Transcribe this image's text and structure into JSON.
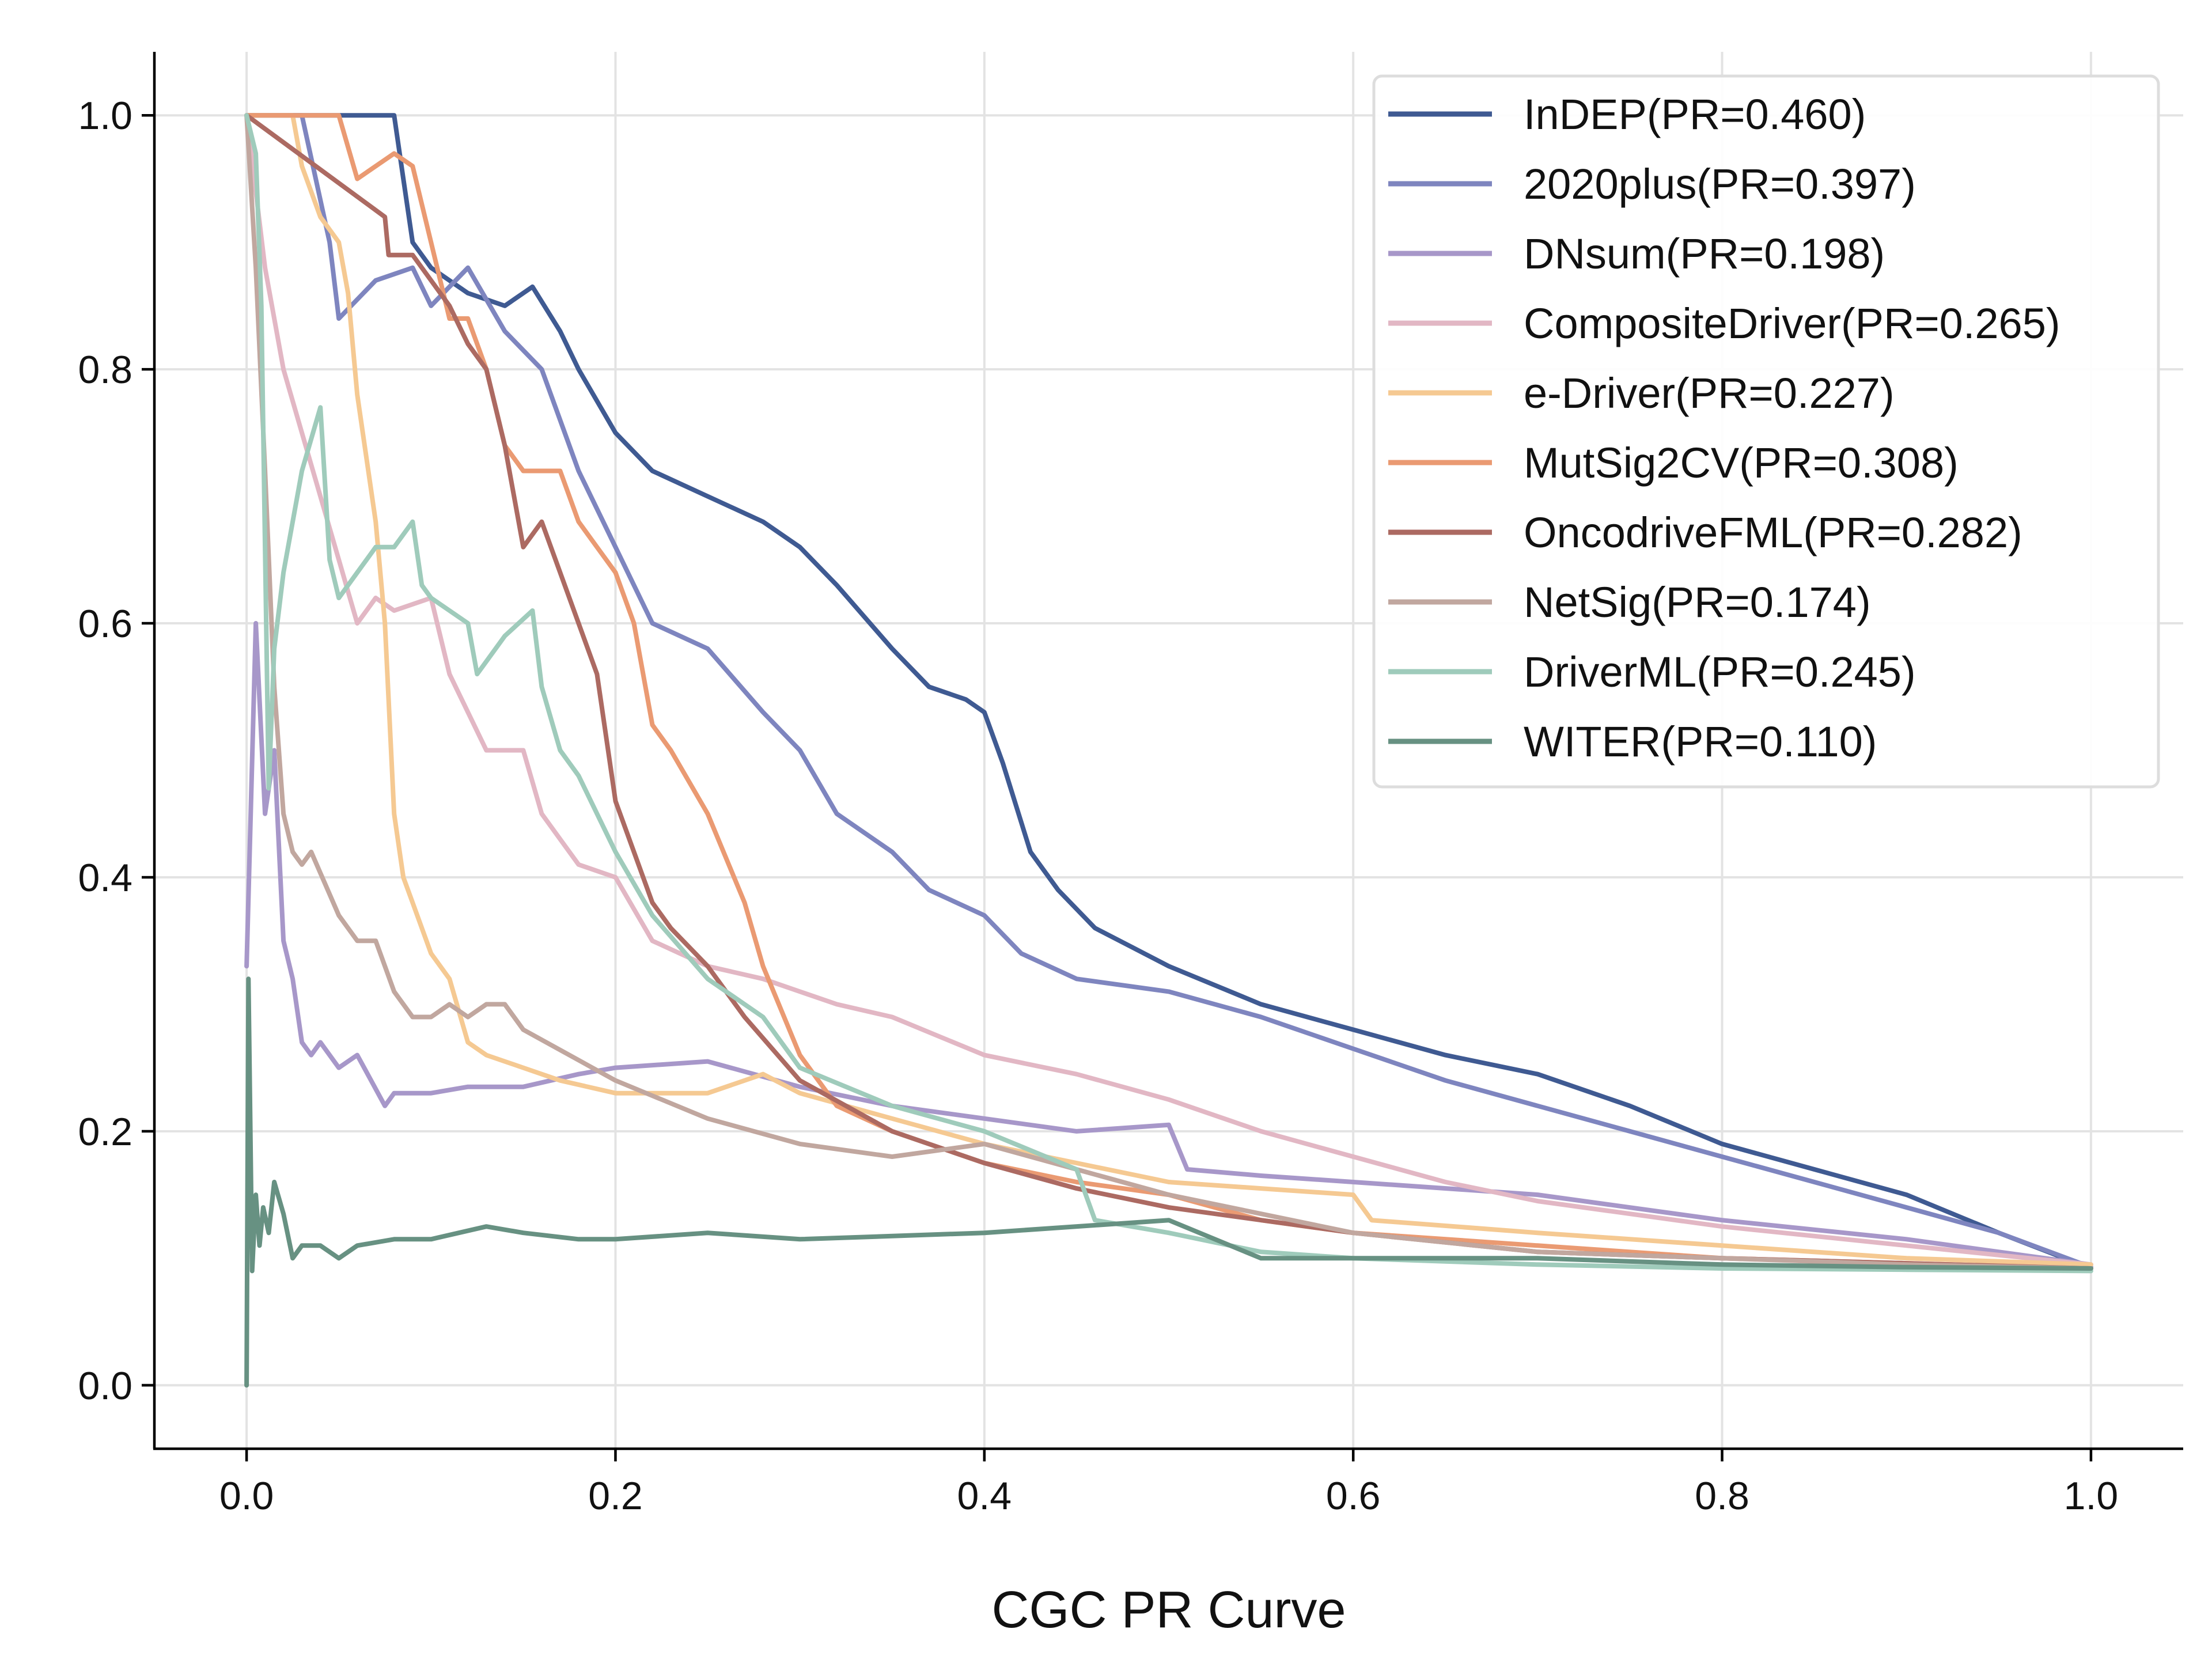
{
  "chart_data": {
    "type": "line",
    "title": "",
    "xlabel": "CGC PR Curve",
    "ylabel": "",
    "xlim": [
      -0.05,
      1.05
    ],
    "ylim": [
      -0.05,
      1.05
    ],
    "xticks": [
      0.0,
      0.2,
      0.4,
      0.6,
      0.8,
      1.0
    ],
    "xtick_labels": [
      "0.0",
      "0.2",
      "0.4",
      "0.6",
      "0.8",
      "1.0"
    ],
    "yticks": [
      0.0,
      0.2,
      0.4,
      0.6,
      0.8,
      1.0
    ],
    "ytick_labels": [
      "0.0",
      "0.2",
      "0.4",
      "0.6",
      "0.8",
      "1.0"
    ],
    "grid": true,
    "legend_position": "top-right",
    "series": [
      {
        "name": "InDEP(PR=0.460)",
        "color": "#3f5a92",
        "opacity": 1.0,
        "x": [
          0.0,
          0.04,
          0.08,
          0.085,
          0.09,
          0.1,
          0.12,
          0.14,
          0.155,
          0.17,
          0.18,
          0.2,
          0.22,
          0.25,
          0.28,
          0.3,
          0.32,
          0.35,
          0.37,
          0.39,
          0.4,
          0.41,
          0.425,
          0.44,
          0.46,
          0.48,
          0.5,
          0.55,
          0.6,
          0.65,
          0.7,
          0.75,
          0.8,
          0.85,
          0.9,
          0.95,
          1.0
        ],
        "y": [
          1.0,
          1.0,
          1.0,
          0.95,
          0.9,
          0.88,
          0.86,
          0.85,
          0.865,
          0.83,
          0.8,
          0.75,
          0.72,
          0.7,
          0.68,
          0.66,
          0.63,
          0.58,
          0.55,
          0.54,
          0.53,
          0.49,
          0.42,
          0.39,
          0.36,
          0.345,
          0.33,
          0.3,
          0.28,
          0.26,
          0.245,
          0.22,
          0.19,
          0.17,
          0.15,
          0.12,
          0.092
        ]
      },
      {
        "name": "2020plus(PR=0.397)",
        "color": "#7e85bf",
        "opacity": 1.0,
        "x": [
          0.0,
          0.03,
          0.045,
          0.05,
          0.07,
          0.09,
          0.1,
          0.12,
          0.14,
          0.16,
          0.18,
          0.2,
          0.22,
          0.25,
          0.28,
          0.3,
          0.32,
          0.35,
          0.37,
          0.4,
          0.42,
          0.45,
          0.5,
          0.55,
          0.6,
          0.65,
          0.7,
          0.75,
          0.8,
          0.85,
          0.9,
          0.95,
          1.0
        ],
        "y": [
          1.0,
          1.0,
          0.9,
          0.84,
          0.87,
          0.88,
          0.85,
          0.88,
          0.83,
          0.8,
          0.72,
          0.66,
          0.6,
          0.58,
          0.53,
          0.5,
          0.45,
          0.42,
          0.39,
          0.37,
          0.34,
          0.32,
          0.31,
          0.29,
          0.265,
          0.24,
          0.22,
          0.2,
          0.18,
          0.16,
          0.14,
          0.12,
          0.093
        ]
      },
      {
        "name": "DNsum(PR=0.198)",
        "color": "#a797c9",
        "opacity": 1.0,
        "x": [
          0.0,
          0.005,
          0.01,
          0.015,
          0.02,
          0.025,
          0.03,
          0.035,
          0.04,
          0.05,
          0.06,
          0.075,
          0.08,
          0.1,
          0.12,
          0.15,
          0.18,
          0.2,
          0.25,
          0.3,
          0.35,
          0.4,
          0.45,
          0.5,
          0.51,
          0.55,
          0.6,
          0.7,
          0.8,
          0.9,
          1.0
        ],
        "y": [
          0.33,
          0.6,
          0.45,
          0.5,
          0.35,
          0.32,
          0.27,
          0.26,
          0.27,
          0.25,
          0.26,
          0.22,
          0.23,
          0.23,
          0.235,
          0.235,
          0.245,
          0.25,
          0.255,
          0.235,
          0.22,
          0.21,
          0.2,
          0.205,
          0.17,
          0.165,
          0.16,
          0.15,
          0.13,
          0.115,
          0.095
        ]
      },
      {
        "name": "CompositeDriver(PR=0.265)",
        "color": "#e2b7c4",
        "opacity": 1.0,
        "x": [
          0.0,
          0.01,
          0.02,
          0.03,
          0.04,
          0.05,
          0.06,
          0.07,
          0.08,
          0.1,
          0.11,
          0.12,
          0.13,
          0.15,
          0.16,
          0.17,
          0.18,
          0.2,
          0.22,
          0.25,
          0.28,
          0.3,
          0.32,
          0.35,
          0.4,
          0.45,
          0.5,
          0.55,
          0.6,
          0.65,
          0.7,
          0.8,
          0.9,
          1.0
        ],
        "y": [
          1.0,
          0.88,
          0.8,
          0.75,
          0.7,
          0.65,
          0.6,
          0.62,
          0.61,
          0.62,
          0.56,
          0.53,
          0.5,
          0.5,
          0.45,
          0.43,
          0.41,
          0.4,
          0.35,
          0.33,
          0.32,
          0.31,
          0.3,
          0.29,
          0.26,
          0.245,
          0.225,
          0.2,
          0.18,
          0.16,
          0.145,
          0.125,
          0.11,
          0.095
        ]
      },
      {
        "name": "e-Driver(PR=0.227)",
        "color": "#f5c992",
        "opacity": 1.0,
        "x": [
          0.0,
          0.025,
          0.03,
          0.04,
          0.05,
          0.055,
          0.06,
          0.07,
          0.075,
          0.08,
          0.085,
          0.09,
          0.1,
          0.11,
          0.12,
          0.13,
          0.14,
          0.15,
          0.17,
          0.2,
          0.25,
          0.28,
          0.3,
          0.35,
          0.4,
          0.45,
          0.5,
          0.55,
          0.6,
          0.61,
          0.7,
          0.8,
          0.9,
          1.0
        ],
        "y": [
          1.0,
          1.0,
          0.96,
          0.92,
          0.9,
          0.86,
          0.78,
          0.68,
          0.6,
          0.45,
          0.4,
          0.38,
          0.34,
          0.32,
          0.27,
          0.26,
          0.255,
          0.25,
          0.24,
          0.23,
          0.23,
          0.245,
          0.23,
          0.21,
          0.19,
          0.175,
          0.16,
          0.155,
          0.15,
          0.13,
          0.12,
          0.11,
          0.1,
          0.095
        ]
      },
      {
        "name": "MutSig2CV(PR=0.308)",
        "color": "#ea9a72",
        "opacity": 1.0,
        "x": [
          0.0,
          0.05,
          0.06,
          0.07,
          0.08,
          0.09,
          0.1,
          0.11,
          0.12,
          0.13,
          0.14,
          0.15,
          0.17,
          0.18,
          0.19,
          0.2,
          0.21,
          0.22,
          0.23,
          0.25,
          0.27,
          0.28,
          0.3,
          0.32,
          0.35,
          0.4,
          0.45,
          0.5,
          0.55,
          0.6,
          0.7,
          0.8,
          0.9,
          1.0
        ],
        "y": [
          1.0,
          1.0,
          0.95,
          0.96,
          0.97,
          0.96,
          0.9,
          0.84,
          0.84,
          0.8,
          0.74,
          0.72,
          0.72,
          0.68,
          0.66,
          0.64,
          0.6,
          0.52,
          0.5,
          0.45,
          0.38,
          0.33,
          0.26,
          0.22,
          0.2,
          0.175,
          0.16,
          0.15,
          0.13,
          0.12,
          0.11,
          0.1,
          0.096,
          0.092
        ]
      },
      {
        "name": "OncodriveFML(PR=0.282)",
        "color": "#ac6a62",
        "opacity": 1.0,
        "x": [
          0.0,
          0.075,
          0.077,
          0.09,
          0.1,
          0.11,
          0.12,
          0.13,
          0.14,
          0.15,
          0.16,
          0.17,
          0.18,
          0.19,
          0.2,
          0.21,
          0.22,
          0.23,
          0.25,
          0.27,
          0.3,
          0.35,
          0.4,
          0.45,
          0.5,
          0.6,
          0.7,
          0.8,
          0.9,
          1.0
        ],
        "y": [
          1.0,
          0.92,
          0.89,
          0.89,
          0.87,
          0.85,
          0.82,
          0.8,
          0.74,
          0.66,
          0.68,
          0.64,
          0.6,
          0.56,
          0.46,
          0.42,
          0.38,
          0.36,
          0.33,
          0.29,
          0.24,
          0.2,
          0.175,
          0.155,
          0.14,
          0.12,
          0.105,
          0.1,
          0.096,
          0.092
        ]
      },
      {
        "name": "NetSig(PR=0.174)",
        "color": "#c1a79f",
        "opacity": 1.0,
        "x": [
          0.0,
          0.005,
          0.01,
          0.015,
          0.02,
          0.025,
          0.03,
          0.035,
          0.05,
          0.06,
          0.07,
          0.08,
          0.09,
          0.1,
          0.11,
          0.12,
          0.13,
          0.14,
          0.15,
          0.2,
          0.25,
          0.3,
          0.35,
          0.4,
          0.45,
          0.5,
          0.6,
          0.7,
          0.8,
          0.9,
          1.0
        ],
        "y": [
          1.0,
          0.88,
          0.72,
          0.55,
          0.45,
          0.42,
          0.41,
          0.42,
          0.37,
          0.35,
          0.35,
          0.31,
          0.29,
          0.29,
          0.3,
          0.29,
          0.3,
          0.3,
          0.28,
          0.24,
          0.21,
          0.19,
          0.18,
          0.19,
          0.17,
          0.15,
          0.12,
          0.105,
          0.1,
          0.095,
          0.092
        ]
      },
      {
        "name": "DriverML(PR=0.245)",
        "color": "#9fcbbb",
        "opacity": 1.0,
        "x": [
          0.0,
          0.005,
          0.008,
          0.012,
          0.015,
          0.02,
          0.03,
          0.04,
          0.045,
          0.05,
          0.06,
          0.07,
          0.08,
          0.09,
          0.095,
          0.1,
          0.11,
          0.12,
          0.125,
          0.14,
          0.155,
          0.16,
          0.17,
          0.18,
          0.2,
          0.22,
          0.25,
          0.28,
          0.3,
          0.35,
          0.4,
          0.45,
          0.46,
          0.5,
          0.55,
          0.6,
          0.7,
          0.8,
          0.9,
          1.0
        ],
        "y": [
          1.0,
          0.97,
          0.85,
          0.47,
          0.58,
          0.64,
          0.72,
          0.77,
          0.65,
          0.62,
          0.64,
          0.66,
          0.66,
          0.68,
          0.63,
          0.62,
          0.61,
          0.6,
          0.56,
          0.59,
          0.61,
          0.55,
          0.5,
          0.48,
          0.42,
          0.37,
          0.32,
          0.29,
          0.25,
          0.22,
          0.2,
          0.17,
          0.13,
          0.12,
          0.105,
          0.1,
          0.095,
          0.092,
          0.091,
          0.09
        ]
      },
      {
        "name": "WITER(PR=0.110)",
        "color": "#679182",
        "opacity": 1.0,
        "x": [
          0.0,
          0.001,
          0.003,
          0.005,
          0.007,
          0.009,
          0.012,
          0.015,
          0.02,
          0.025,
          0.03,
          0.04,
          0.05,
          0.06,
          0.08,
          0.1,
          0.13,
          0.15,
          0.18,
          0.2,
          0.25,
          0.3,
          0.4,
          0.5,
          0.55,
          0.6,
          0.7,
          0.8,
          0.9,
          1.0
        ],
        "y": [
          0.0,
          0.32,
          0.09,
          0.15,
          0.11,
          0.14,
          0.12,
          0.16,
          0.135,
          0.1,
          0.11,
          0.11,
          0.1,
          0.11,
          0.115,
          0.115,
          0.125,
          0.12,
          0.115,
          0.115,
          0.12,
          0.115,
          0.12,
          0.13,
          0.1,
          0.1,
          0.1,
          0.095,
          0.093,
          0.092
        ]
      }
    ]
  }
}
